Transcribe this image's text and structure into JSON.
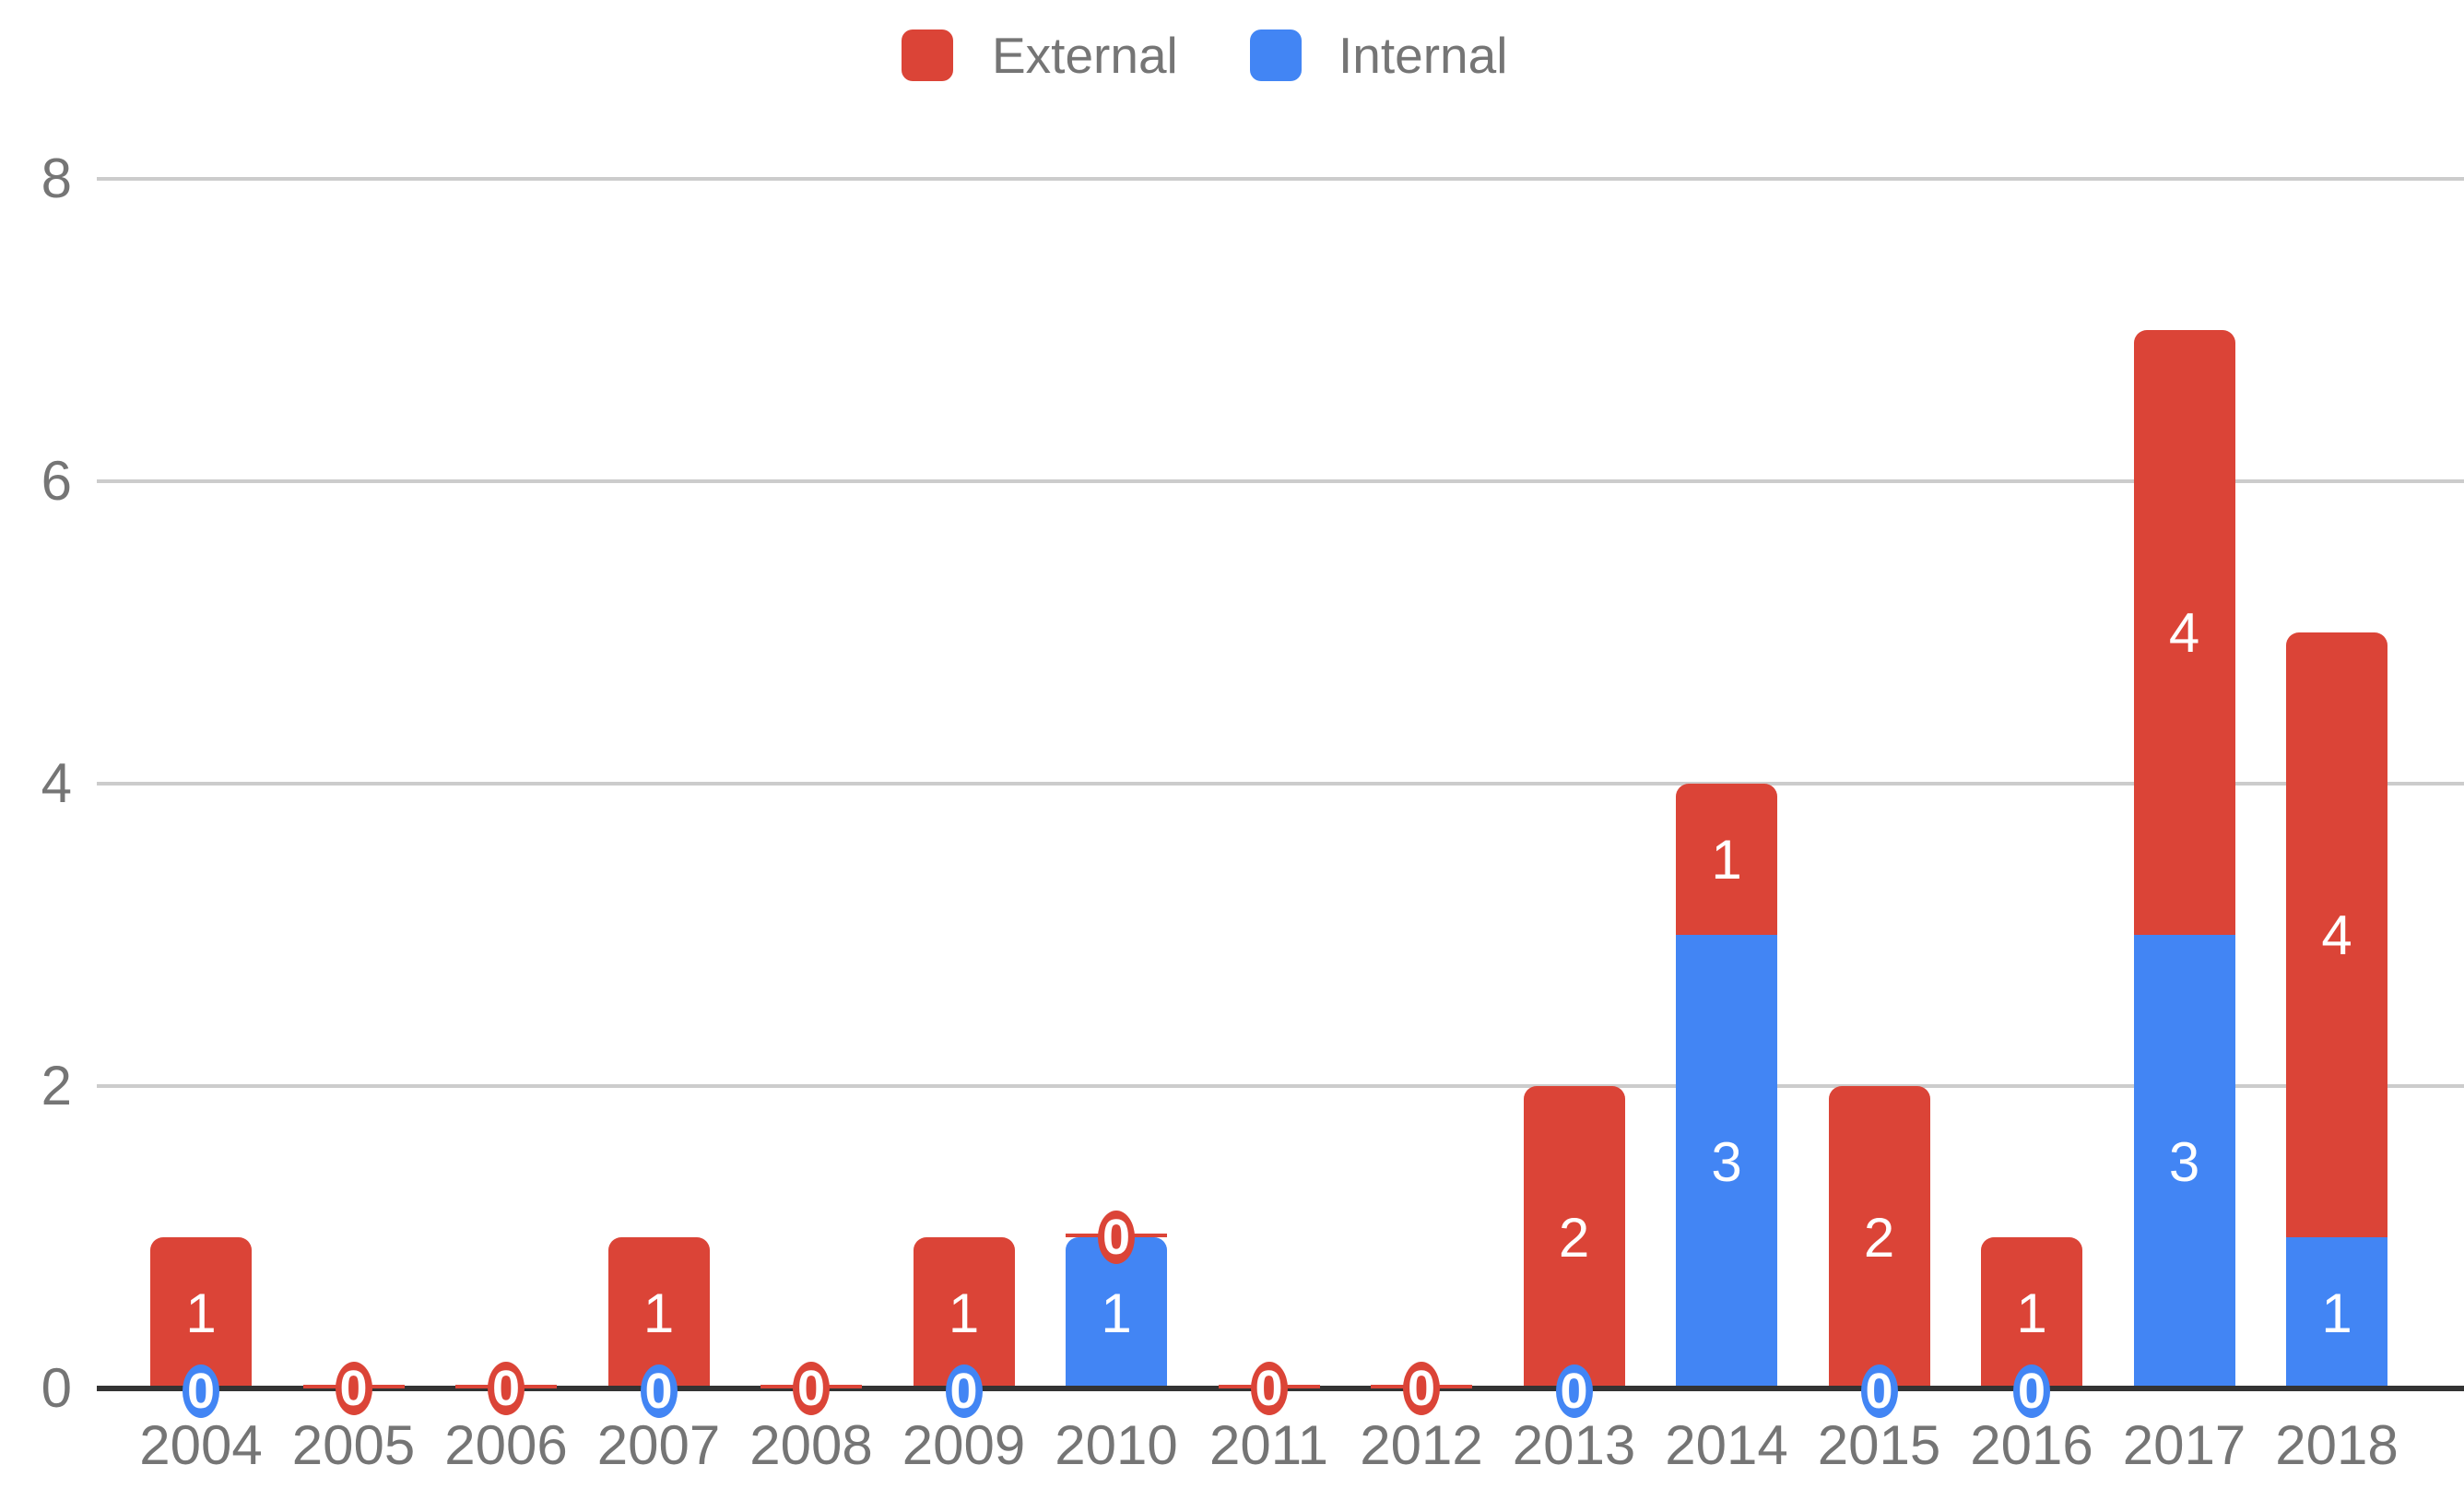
{
  "legend": {
    "items": [
      {
        "label": "External",
        "color": "#db4437"
      },
      {
        "label": "Internal",
        "color": "#4285f4"
      }
    ]
  },
  "y_axis": {
    "ticks": [
      8,
      6,
      4,
      2,
      0
    ]
  },
  "chart_data": {
    "type": "bar",
    "stacked": true,
    "title": "",
    "xlabel": "",
    "ylabel": "",
    "categories": [
      "2004",
      "2005",
      "2006",
      "2007",
      "2008",
      "2009",
      "2010",
      "2011",
      "2012",
      "2013",
      "2014",
      "2015",
      "2016",
      "2017",
      "2018"
    ],
    "series": [
      {
        "name": "Internal",
        "color": "#4285f4",
        "values": [
          0,
          0,
          0,
          0,
          0,
          0,
          1,
          0,
          0,
          0,
          3,
          0,
          0,
          3,
          1
        ]
      },
      {
        "name": "External",
        "color": "#db4437",
        "values": [
          1,
          0,
          0,
          1,
          0,
          1,
          0,
          0,
          0,
          2,
          1,
          2,
          1,
          4,
          4
        ]
      }
    ],
    "stack_order_bottom_to_top": [
      "Internal",
      "External"
    ],
    "totals": [
      1,
      0,
      0,
      1,
      0,
      1,
      1,
      0,
      0,
      2,
      4,
      2,
      1,
      7,
      5
    ],
    "ylim": [
      0,
      8
    ],
    "y_gridlines": [
      0,
      2,
      4,
      6,
      8
    ],
    "grid": true,
    "legend_position": "top-center",
    "annotation_style": "white value labels centered in segments; zero values shown as colored oval badges on segment boundary; zero-height external bars drawn as thin red slivers",
    "colors": {
      "axis_line": "#333333",
      "gridline": "#cccccc",
      "tick_label": "#757575",
      "bar_value_label": "#ffffff"
    }
  }
}
